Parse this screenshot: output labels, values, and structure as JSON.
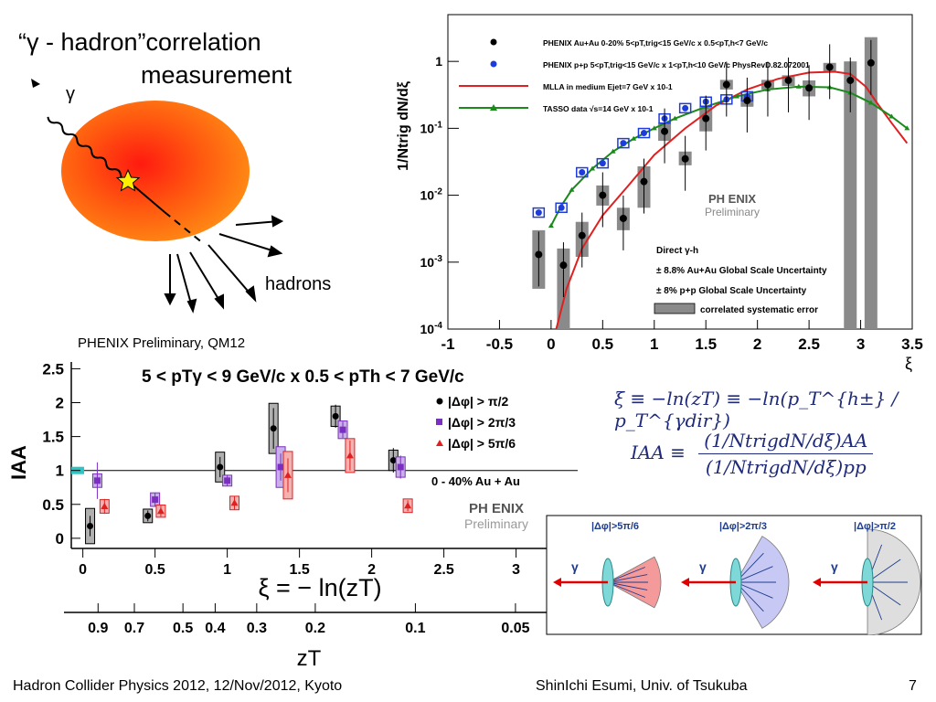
{
  "slide": {
    "title_line1": "“γ - hadron”correlation",
    "title_line2": "measurement",
    "gamma_label": "γ",
    "hadrons_label": "hadrons",
    "preliminary_note": "PHENIX Preliminary, QM12",
    "footer_left": "Hadron Collider Physics 2012, 12/Nov/2012, Kyoto",
    "footer_center": "ShinIchi Esumi, Univ. of Tsukuba",
    "page_number": "7",
    "formula_xi": "ξ ≡ −ln(zT) ≡ −ln(p_T^{h±} / p_T^{γdir})",
    "formula_iaa_lhs": "IAA ≡",
    "formula_iaa_num": "(1/NtrigdN/dξ)AA",
    "formula_iaa_den": "(1/NtrigdN/dξ)pp"
  },
  "colors": {
    "auau": "#000000",
    "pp": "#1e3cdc",
    "mlla": "#e02020",
    "tasso": "#1a8a1a",
    "sys_box": "#8a8a8a",
    "med_violet": "#7b2fc0",
    "fireball": "#ff7a10",
    "formula": "#1f2a7a"
  },
  "chart_data": [
    {
      "type": "scatter",
      "y_scale": "log",
      "ylabel": "1/Ntrig dN/dξ",
      "xlabel": "ξ",
      "xlim": [
        -1,
        3.5
      ],
      "ylim": [
        0.0001,
        5
      ],
      "x_ticks": [
        "-1",
        "-0.5",
        "0",
        "0.5",
        "1",
        "1.5",
        "2",
        "2.5",
        "3",
        "3.5"
      ],
      "y_ticks": [
        "10-4",
        "10-3",
        "10-2",
        "10-1",
        "1"
      ],
      "legend": [
        "PHENIX Au+Au 0-20% 5<pT,trig<15 GeV/c x 0.5<pT,h<7 GeV/c",
        "PHENIX p+p 5<pT,trig<15 GeV/c x 1<pT,h<10 GeV/c PhysRevD.82.072001",
        "MLLA in medium Ejet=7 GeV x 10-1",
        "TASSO data √s=14 GeV x 10-1"
      ],
      "annotations": [
        "Direct γ-h",
        "± 8.8% Au+Au Global Scale Uncertainty",
        "± 8% p+p Global Scale Uncertainty",
        "correlated systematic error"
      ],
      "watermark_top": "PH ENIX",
      "watermark_bottom": "Preliminary",
      "series": [
        {
          "name": "PHENIX Au+Au 0-20%",
          "marker": "circle",
          "x": [
            -0.12,
            0.12,
            0.3,
            0.5,
            0.7,
            0.9,
            1.1,
            1.3,
            1.5,
            1.7,
            1.9,
            2.1,
            2.3,
            2.5,
            2.7,
            2.9,
            3.1
          ],
          "y": [
            0.0013,
            0.0009,
            0.0025,
            0.01,
            0.0045,
            0.016,
            0.09,
            0.035,
            0.14,
            0.45,
            0.26,
            0.45,
            0.52,
            0.4,
            0.82,
            0.52,
            0.95
          ],
          "sys_lo": [
            0.0004,
            0.0001,
            0.0012,
            0.007,
            0.003,
            0.0065,
            0.065,
            0.028,
            0.09,
            0.38,
            0.21,
            0.38,
            0.43,
            0.3,
            0.7,
            0.0001,
            0.0001
          ],
          "sys_hi": [
            0.003,
            0.0016,
            0.004,
            0.014,
            0.0065,
            0.027,
            0.12,
            0.045,
            0.21,
            0.53,
            0.32,
            0.53,
            0.62,
            0.52,
            0.95,
            1.0,
            2.3
          ]
        },
        {
          "name": "PHENIX p+p",
          "marker": "circle",
          "x": [
            -0.12,
            0.1,
            0.3,
            0.5,
            0.7,
            0.9,
            1.1,
            1.3,
            1.5,
            1.7,
            1.9
          ],
          "y": [
            0.0055,
            0.0065,
            0.022,
            0.03,
            0.06,
            0.085,
            0.14,
            0.2,
            0.25,
            0.27,
            0.3
          ]
        },
        {
          "name": "MLLA in medium",
          "line": true,
          "x": [
            0.05,
            0.15,
            0.3,
            0.5,
            0.75,
            1.0,
            1.3,
            1.6,
            1.9,
            2.2,
            2.5,
            2.75,
            2.9,
            3.05,
            3.15,
            3.3,
            3.45
          ],
          "y": [
            0.0001,
            0.0004,
            0.0016,
            0.005,
            0.014,
            0.04,
            0.1,
            0.22,
            0.38,
            0.55,
            0.68,
            0.7,
            0.65,
            0.42,
            0.25,
            0.12,
            0.06
          ]
        },
        {
          "name": "TASSO data",
          "line": true,
          "x": [
            0.0,
            0.1,
            0.2,
            0.4,
            0.6,
            0.8,
            1.0,
            1.2,
            1.5,
            1.8,
            2.1,
            2.4,
            2.7,
            2.9,
            3.1,
            3.3,
            3.45
          ],
          "y": [
            0.0035,
            0.007,
            0.012,
            0.025,
            0.045,
            0.07,
            0.1,
            0.14,
            0.21,
            0.3,
            0.38,
            0.42,
            0.41,
            0.34,
            0.24,
            0.15,
            0.1
          ]
        }
      ]
    },
    {
      "type": "scatter",
      "title": "5 < pTγ < 9 GeV/c x 0.5 < pTh < 7 GeV/c",
      "ylabel": "IAA",
      "xlabel": "ξ = − ln(zT)",
      "secondary_xlabel": "zT",
      "xlim": [
        -0.08,
        3.3
      ],
      "ylim": [
        -0.15,
        2.6
      ],
      "x_ticks": [
        "0",
        "0.5",
        "1",
        "1.5",
        "2",
        "2.5",
        "3"
      ],
      "y_ticks": [
        "0",
        "0.5",
        "1",
        "1.5",
        "2",
        "2.5"
      ],
      "zT_ticks": [
        "0.9",
        "0.7",
        "0.5",
        "0.4",
        "0.3",
        "0.2",
        "0.1",
        "0.05"
      ],
      "zT_tick_values": [
        0.9,
        0.7,
        0.5,
        0.4,
        0.3,
        0.2,
        0.1,
        0.05
      ],
      "reference_line": 1,
      "centrality_label": "0 - 40% Au + Au",
      "watermark_top": "PH ENIX",
      "watermark_bottom": "Preliminary",
      "series": [
        {
          "name": "|Δφ| > π/2",
          "color": "#000000",
          "marker": "circle",
          "x": [
            0.05,
            0.45,
            0.95,
            1.32,
            1.75,
            2.15
          ],
          "y": [
            0.18,
            0.33,
            1.05,
            1.62,
            1.8,
            1.15
          ],
          "err": [
            0.15,
            0.08,
            0.15,
            0.3,
            0.17,
            0.18
          ],
          "sys": [
            0.26,
            0.1,
            0.22,
            0.37,
            0.15,
            0.15
          ]
        },
        {
          "name": "|Δφ| > 2π/3",
          "color": "#7b2fc0",
          "marker": "square",
          "x": [
            0.1,
            0.5,
            1.0,
            1.37,
            1.8,
            2.2
          ],
          "y": [
            0.85,
            0.57,
            0.85,
            1.05,
            1.6,
            1.05
          ],
          "err": [
            0.27,
            0.1,
            0.08,
            0.2,
            0.12,
            0.17
          ],
          "sys": [
            0.1,
            0.1,
            0.08,
            0.3,
            0.13,
            0.15
          ]
        },
        {
          "name": "|Δφ| > 5π/6",
          "color": "#e02020",
          "marker": "triangle",
          "x": [
            0.15,
            0.54,
            1.05,
            1.42,
            1.85,
            2.25
          ],
          "y": [
            0.47,
            0.4,
            0.52,
            0.93,
            1.22,
            0.48
          ],
          "err": [
            0.11,
            0.08,
            0.1,
            0.25,
            0.22,
            0.08
          ],
          "sys": [
            0.1,
            0.09,
            0.1,
            0.35,
            0.25,
            0.1
          ]
        }
      ]
    }
  ],
  "diagram": {
    "labels": [
      "|Δφ|>5π/6",
      "|Δφ|>2π/3",
      "|Δφ|>π/2"
    ],
    "gamma": "γ"
  }
}
